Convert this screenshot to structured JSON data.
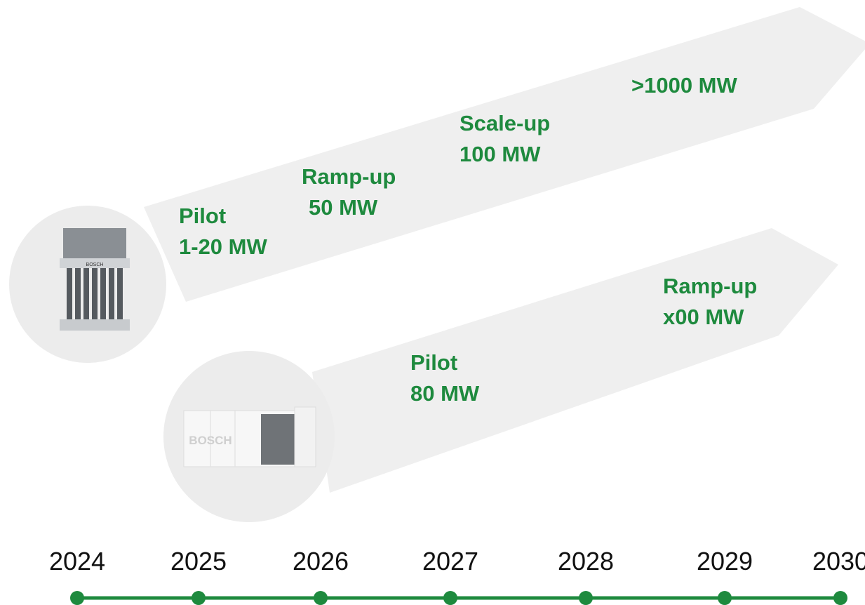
{
  "tracks": [
    {
      "product_logo": "BOSCH",
      "stages": [
        {
          "lines": [
            "Pilot",
            "1-20 MW"
          ]
        },
        {
          "lines": [
            "Ramp-up",
            "50 MW"
          ]
        },
        {
          "lines": [
            "Scale-up",
            "100 MW"
          ]
        },
        {
          "lines": [
            ">1000 MW"
          ]
        }
      ]
    },
    {
      "product_logo": "BOSCH",
      "stages": [
        {
          "lines": [
            "Pilot",
            "80 MW"
          ]
        },
        {
          "lines": [
            "Ramp-up",
            "x00 MW"
          ]
        }
      ]
    }
  ],
  "timeline": {
    "years": [
      "2024",
      "2025",
      "2026",
      "2027",
      "2028",
      "2029",
      "2030"
    ]
  }
}
